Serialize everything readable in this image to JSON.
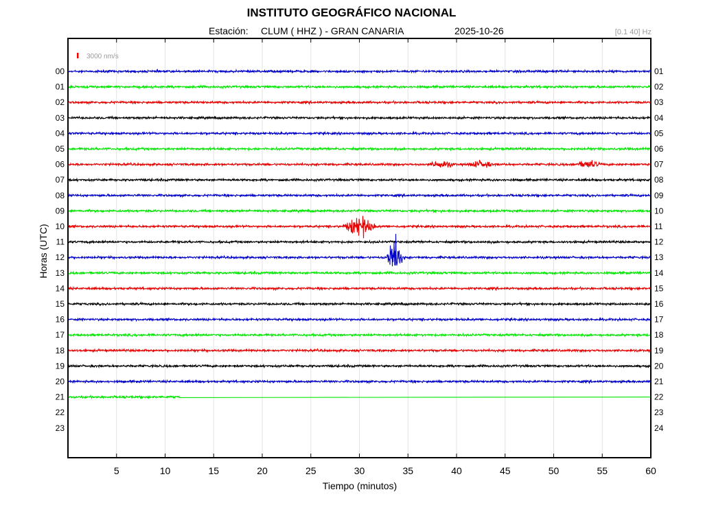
{
  "header": {
    "title": "INSTITUTO GEOGRÁFICO NACIONAL",
    "station_label": "Estación:",
    "station": "CLUM ( HHZ ) - GRAN CANARIA",
    "date": "2025-10-26",
    "filter": "[0.1 40] Hz"
  },
  "scale": {
    "label": "3000 nm/s",
    "color": "#ff0000"
  },
  "chart_data": {
    "type": "line",
    "xlabel": "Tiempo (minutos)",
    "ylabel": "Horas (UTC)",
    "xlim": [
      0,
      60
    ],
    "x_ticks": [
      5,
      10,
      15,
      20,
      25,
      30,
      35,
      40,
      45,
      50,
      55,
      60
    ],
    "grid": true,
    "left_hour_labels": [
      "00",
      "01",
      "02",
      "03",
      "04",
      "05",
      "06",
      "07",
      "08",
      "09",
      "10",
      "11",
      "12",
      "13",
      "14",
      "15",
      "16",
      "17",
      "18",
      "19",
      "20",
      "21",
      "22",
      "23"
    ],
    "right_hour_labels": [
      "01",
      "02",
      "03",
      "04",
      "05",
      "06",
      "07",
      "08",
      "09",
      "10",
      "11",
      "12",
      "13",
      "14",
      "15",
      "16",
      "17",
      "18",
      "19",
      "20",
      "21",
      "22",
      "23",
      "24"
    ],
    "trace_colors": [
      "#0000c8",
      "#00e600",
      "#e60000",
      "#000000"
    ],
    "traces_recorded_hours": 22,
    "last_trace": {
      "hour": "21",
      "noisy_until_minute": 11.5
    },
    "events": [
      {
        "hour": "06",
        "minute": 38.5,
        "amplitude": "small"
      },
      {
        "hour": "06",
        "minute": 42.5,
        "amplitude": "small"
      },
      {
        "hour": "06",
        "minute": 53.5,
        "amplitude": "small"
      },
      {
        "hour": "10",
        "minute": 30.0,
        "amplitude": "medium"
      },
      {
        "hour": "12",
        "minute": 33.6,
        "amplitude": "large"
      }
    ]
  }
}
